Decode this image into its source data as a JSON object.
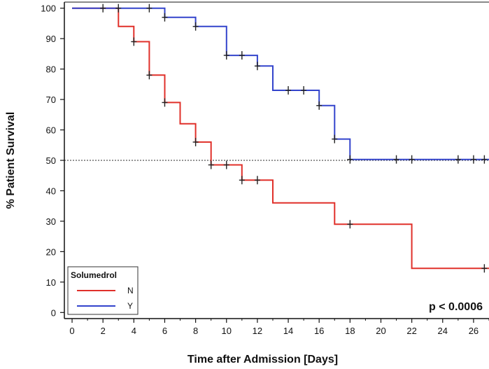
{
  "chart_data": {
    "type": "line",
    "xlabel": "Time after Admission [Days]",
    "ylabel": "% Patient Survival",
    "xlim": [
      -0.5,
      27
    ],
    "ylim": [
      -2,
      102
    ],
    "x_ticks": [
      0,
      2,
      4,
      6,
      8,
      10,
      12,
      14,
      16,
      18,
      20,
      22,
      24,
      26
    ],
    "y_ticks": [
      0,
      10,
      20,
      30,
      40,
      50,
      60,
      70,
      80,
      90,
      100
    ],
    "reference_line_y": 50,
    "annotation": "p < 0.0006",
    "legend": {
      "title": "Solumedrol",
      "placement": "bottom-left"
    },
    "series": [
      {
        "name": "N",
        "color": "#e0302a",
        "steps": [
          [
            0,
            100
          ],
          [
            3,
            100
          ],
          [
            3,
            94
          ],
          [
            4,
            94
          ],
          [
            4,
            89
          ],
          [
            5,
            89
          ],
          [
            5,
            78
          ],
          [
            6,
            78
          ],
          [
            6,
            69
          ],
          [
            7,
            69
          ],
          [
            7,
            62
          ],
          [
            8,
            62
          ],
          [
            8,
            56
          ],
          [
            9,
            56
          ],
          [
            9,
            48.5
          ],
          [
            11,
            48.5
          ],
          [
            11,
            43.5
          ],
          [
            13,
            43.5
          ],
          [
            13,
            36
          ],
          [
            17,
            36
          ],
          [
            17,
            29
          ],
          [
            22,
            29
          ],
          [
            22,
            14.5
          ],
          [
            27,
            14.5
          ]
        ],
        "censors": [
          [
            4,
            89
          ],
          [
            5,
            78
          ],
          [
            6,
            69
          ],
          [
            8,
            56
          ],
          [
            9,
            48.5
          ],
          [
            10,
            48.5
          ],
          [
            11,
            43.5
          ],
          [
            12,
            43.5
          ],
          [
            18,
            29
          ],
          [
            26.7,
            14.5
          ]
        ]
      },
      {
        "name": "Y",
        "color": "#3344cc",
        "steps": [
          [
            0,
            100
          ],
          [
            6,
            100
          ],
          [
            6,
            97
          ],
          [
            8,
            97
          ],
          [
            8,
            94
          ],
          [
            10,
            94
          ],
          [
            10,
            84.5
          ],
          [
            12,
            84.5
          ],
          [
            12,
            81
          ],
          [
            13,
            81
          ],
          [
            13,
            73
          ],
          [
            16,
            73
          ],
          [
            16,
            68
          ],
          [
            17,
            68
          ],
          [
            17,
            57
          ],
          [
            18,
            57
          ],
          [
            18,
            50.3
          ],
          [
            27,
            50.3
          ]
        ],
        "censors": [
          [
            2,
            100
          ],
          [
            3,
            100
          ],
          [
            5,
            100
          ],
          [
            6,
            97
          ],
          [
            8,
            94
          ],
          [
            10,
            84.5
          ],
          [
            11,
            84.5
          ],
          [
            12,
            81
          ],
          [
            14,
            73
          ],
          [
            15,
            73
          ],
          [
            16,
            68
          ],
          [
            17,
            57
          ],
          [
            18,
            50.3
          ],
          [
            21,
            50.3
          ],
          [
            22,
            50.3
          ],
          [
            25,
            50.3
          ],
          [
            26,
            50.3
          ],
          [
            26.7,
            50.3
          ]
        ]
      }
    ]
  }
}
